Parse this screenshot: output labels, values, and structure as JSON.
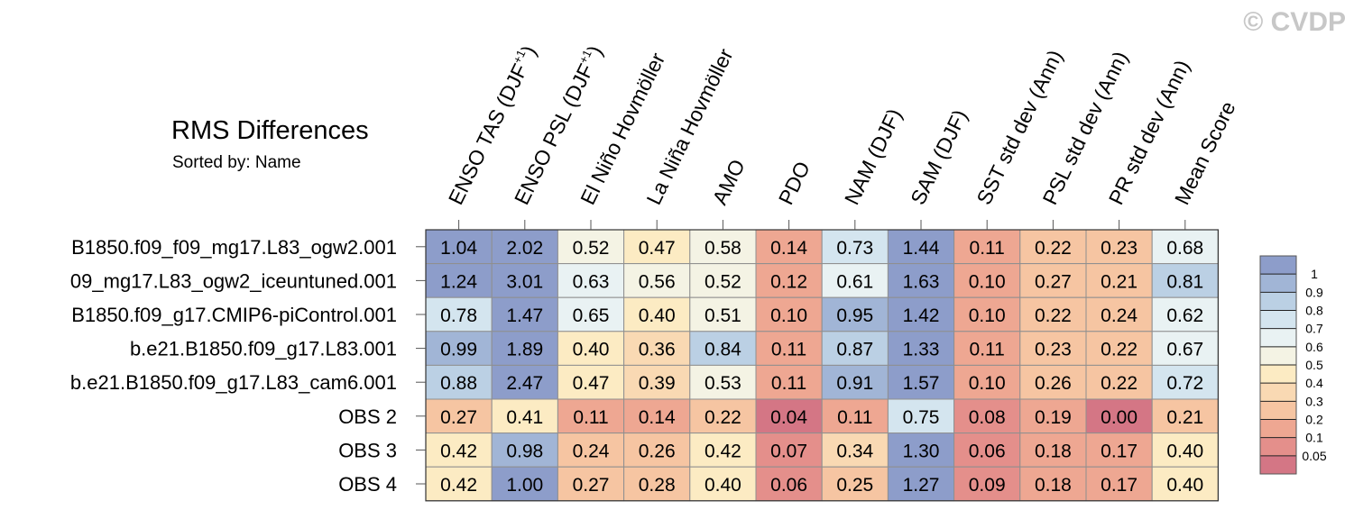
{
  "watermark": "© CVDP",
  "chart_data": {
    "type": "heatmap",
    "title": "RMS Differences",
    "subtitle": "Sorted by: Name",
    "columns": [
      "ENSO TAS (DJF+1)",
      "ENSO PSL (DJF+1)",
      "El Niño Hovmöller",
      "La Niña Hovmöller",
      "AMO",
      "PDO",
      "NAM (DJF)",
      "SAM (DJF)",
      "SST std dev (Ann)",
      "PSL std dev (Ann)",
      "PR std dev (Ann)",
      "Mean Score"
    ],
    "rows": [
      "B1850.f09_f09_mg17.L83_ogw2.001",
      "09_mg17.L83_ogw2_iceuntuned.001",
      "B1850.f09_g17.CMIP6-piControl.001",
      "b.e21.B1850.f09_g17.L83.001",
      "b.e21.B1850.f09_g17.L83_cam6.001",
      "OBS 2",
      "OBS 3",
      "OBS 4"
    ],
    "values": [
      [
        "1.04",
        "2.02",
        "0.52",
        "0.47",
        "0.58",
        "0.14",
        "0.73",
        "1.44",
        "0.11",
        "0.22",
        "0.23",
        "0.68"
      ],
      [
        "1.24",
        "3.01",
        "0.63",
        "0.56",
        "0.52",
        "0.12",
        "0.61",
        "1.63",
        "0.10",
        "0.27",
        "0.21",
        "0.81"
      ],
      [
        "0.78",
        "1.47",
        "0.65",
        "0.40",
        "0.51",
        "0.10",
        "0.95",
        "1.42",
        "0.10",
        "0.22",
        "0.24",
        "0.62"
      ],
      [
        "0.99",
        "1.89",
        "0.40",
        "0.36",
        "0.84",
        "0.11",
        "0.87",
        "1.33",
        "0.11",
        "0.23",
        "0.22",
        "0.67"
      ],
      [
        "0.88",
        "2.47",
        "0.47",
        "0.39",
        "0.53",
        "0.11",
        "0.91",
        "1.57",
        "0.10",
        "0.26",
        "0.22",
        "0.72"
      ],
      [
        "0.27",
        "0.41",
        "0.11",
        "0.14",
        "0.22",
        "0.04",
        "0.11",
        "0.75",
        "0.08",
        "0.19",
        "0.00",
        "0.21"
      ],
      [
        "0.42",
        "0.98",
        "0.24",
        "0.26",
        "0.42",
        "0.07",
        "0.34",
        "1.30",
        "0.06",
        "0.18",
        "0.17",
        "0.40"
      ],
      [
        "0.42",
        "1.00",
        "0.27",
        "0.28",
        "0.40",
        "0.06",
        "0.25",
        "1.27",
        "0.09",
        "0.18",
        "0.17",
        "0.40"
      ]
    ],
    "colorbar": {
      "labels": [
        "1",
        "0.9",
        "0.8",
        "0.7",
        "0.6",
        "0.5",
        "0.4",
        "0.3",
        "0.2",
        "0.1",
        "0.05"
      ],
      "bins": [
        {
          "min": 1.0,
          "color": "#8d9dca"
        },
        {
          "min": 0.9,
          "color": "#a1b5d6"
        },
        {
          "min": 0.8,
          "color": "#bbd0e4"
        },
        {
          "min": 0.7,
          "color": "#d4e5ef"
        },
        {
          "min": 0.6,
          "color": "#e9f2f3"
        },
        {
          "min": 0.5,
          "color": "#f4f3e4"
        },
        {
          "min": 0.4,
          "color": "#fcebc3"
        },
        {
          "min": 0.3,
          "color": "#f9d9b3"
        },
        {
          "min": 0.2,
          "color": "#f6c5a2"
        },
        {
          "min": 0.1,
          "color": "#eea792"
        },
        {
          "min": 0.05,
          "color": "#e48f8b"
        },
        {
          "min": -1,
          "color": "#d47685"
        }
      ]
    }
  }
}
